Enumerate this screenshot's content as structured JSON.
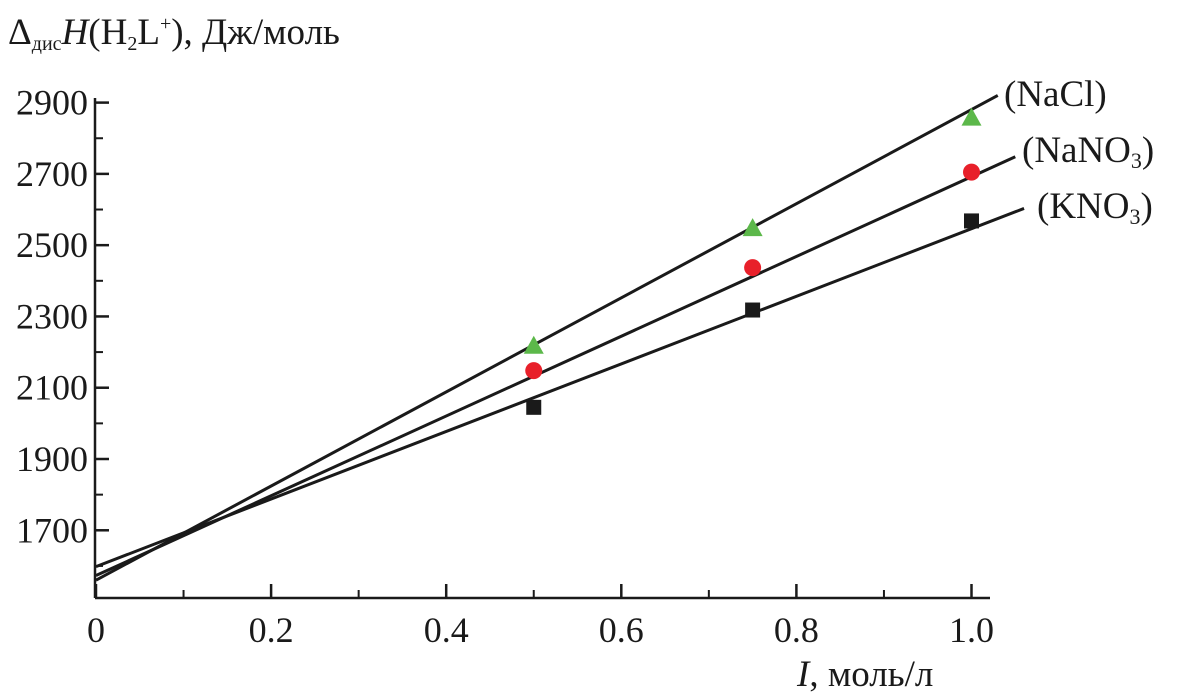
{
  "chart_data": {
    "type": "scatter",
    "xlabel": {
      "var": "I",
      "unit": ", моль/л"
    },
    "ylabel": {
      "delta": "Δ",
      "sub": "дис",
      "var": "H",
      "expr_open": "(H",
      "expr_sub": "2",
      "expr_mid": "L",
      "expr_sup": "+",
      "expr_close": "), Дж/моль"
    },
    "xlim": [
      0,
      1.02
    ],
    "ylim": [
      1510,
      2960
    ],
    "xticks": [
      0,
      0.2,
      0.4,
      0.6,
      0.8,
      1.0
    ],
    "xtick_labels": [
      "0",
      "0.2",
      "0.4",
      "0.6",
      "0.8",
      "1.0"
    ],
    "yticks": [
      1700,
      1900,
      2100,
      2300,
      2500,
      2700,
      2900
    ],
    "ytick_labels": [
      "1700",
      "1900",
      "2100",
      "2300",
      "2500",
      "2700",
      "2900"
    ],
    "grid": false,
    "series": [
      {
        "name": "(NaCl)",
        "name_main": "(NaCl)",
        "name_sub": "",
        "name_tail": "",
        "marker": "triangle",
        "color": "#5cb84a",
        "x": [
          0.5,
          0.75,
          1.0
        ],
        "y": [
          2215,
          2545,
          2855
        ],
        "fit": {
          "x": [
            0,
            1.03
          ],
          "y": [
            1560,
            2920
          ]
        }
      },
      {
        "name": "(NaNO3)",
        "name_main": "(NaNO",
        "name_sub": "3",
        "name_tail": ")",
        "marker": "circle",
        "color": "#e8202a",
        "x": [
          0.5,
          0.75,
          1.0
        ],
        "y": [
          2148,
          2437,
          2705
        ],
        "fit": {
          "x": [
            0,
            1.05
          ],
          "y": [
            1573,
            2748
          ]
        }
      },
      {
        "name": "(KNO3)",
        "name_main": "(KNO",
        "name_sub": "3",
        "name_tail": ")",
        "marker": "square",
        "color": "#1a1a1a",
        "x": [
          0.5,
          0.75,
          1.0
        ],
        "y": [
          2045,
          2318,
          2568
        ],
        "fit": {
          "x": [
            0,
            1.06
          ],
          "y": [
            1598,
            2603
          ]
        }
      }
    ]
  }
}
